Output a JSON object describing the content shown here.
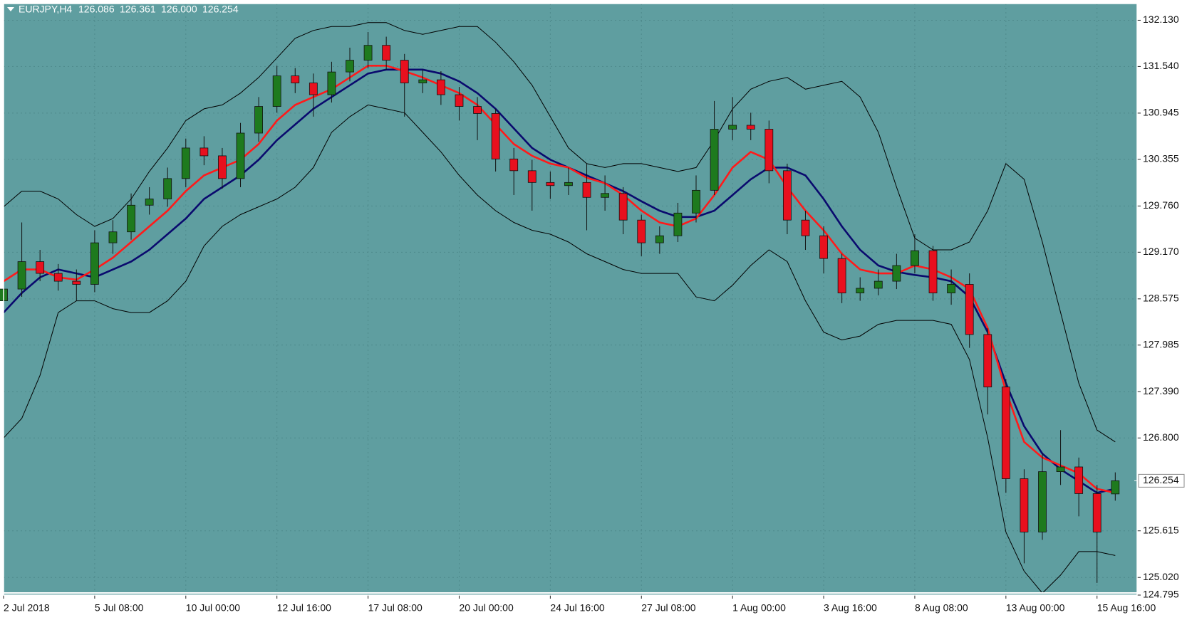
{
  "chart_data": {
    "type": "candlestick",
    "title": "EURJPY,H4",
    "ohlc_label": [
      "126.086",
      "126.361",
      "126.000",
      "126.254"
    ],
    "up_color": "#1e7a1e",
    "down_color": "#e8101e",
    "background": "#5f9ea0",
    "grid": true,
    "xlim": [
      0,
      62.2
    ],
    "ylim": [
      124.795,
      132.343
    ],
    "xticks": [
      {
        "value": 0,
        "label": "2 Jul 2018"
      },
      {
        "value": 5,
        "label": "5 Jul 08:00"
      },
      {
        "value": 10,
        "label": "10 Jul 00:00"
      },
      {
        "value": 15,
        "label": "12 Jul 16:00"
      },
      {
        "value": 20,
        "label": "17 Jul 08:00"
      },
      {
        "value": 25,
        "label": "20 Jul 00:00"
      },
      {
        "value": 30,
        "label": "24 Jul 16:00"
      },
      {
        "value": 35,
        "label": "27 Jul 08:00"
      },
      {
        "value": 40,
        "label": "1 Aug 00:00"
      },
      {
        "value": 45,
        "label": "3 Aug 16:00"
      },
      {
        "value": 50,
        "label": "8 Aug 08:00"
      },
      {
        "value": 55,
        "label": "13 Aug 00:00"
      },
      {
        "value": 60,
        "label": "15 Aug 16:00"
      }
    ],
    "yticks": [
      {
        "value": 132.13,
        "label": "132.130"
      },
      {
        "value": 131.54,
        "label": "131.540"
      },
      {
        "value": 130.945,
        "label": "130.945"
      },
      {
        "value": 130.355,
        "label": "130.355"
      },
      {
        "value": 129.76,
        "label": "129.760"
      },
      {
        "value": 129.17,
        "label": "129.170"
      },
      {
        "value": 128.575,
        "label": "128.575"
      },
      {
        "value": 127.985,
        "label": "127.985"
      },
      {
        "value": 127.39,
        "label": "127.390"
      },
      {
        "value": 126.8,
        "label": "126.800"
      },
      {
        "value": 125.615,
        "label": "125.615"
      },
      {
        "value": 125.02,
        "label": "125.020"
      },
      {
        "value": 124.795,
        "label": "124.795"
      }
    ],
    "current_price": {
      "value": 126.254,
      "label": "126.254"
    },
    "ohlc": {
      "open": [
        128.55,
        128.7,
        129.05,
        128.9,
        128.8,
        128.76,
        129.29,
        129.43,
        129.77,
        129.85,
        130.11,
        130.5,
        130.4,
        130.11,
        130.69,
        131.03,
        131.42,
        131.33,
        131.18,
        131.47,
        131.62,
        131.81,
        131.62,
        131.33,
        131.37,
        131.18,
        131.03,
        130.94,
        130.36,
        130.21,
        130.06,
        130.02,
        130.06,
        129.87,
        129.92,
        129.58,
        129.29,
        129.38,
        129.67,
        129.96,
        130.74,
        130.79,
        130.74,
        130.21,
        129.58,
        129.38,
        129.09,
        128.65,
        128.71,
        128.8,
        129.0,
        129.19,
        128.65,
        128.76,
        128.12,
        127.45,
        126.28,
        125.6,
        126.37,
        126.43,
        126.09,
        126.086
      ],
      "high": [
        128.95,
        129.55,
        129.2,
        129.02,
        128.95,
        129.45,
        129.58,
        129.92,
        130.0,
        130.25,
        130.62,
        130.65,
        130.5,
        130.82,
        131.15,
        131.55,
        131.52,
        131.45,
        131.6,
        131.78,
        131.98,
        131.92,
        131.7,
        131.5,
        131.48,
        131.28,
        131.15,
        131.0,
        130.5,
        130.35,
        130.2,
        130.25,
        130.3,
        130.15,
        130.0,
        129.65,
        129.5,
        129.8,
        130.15,
        131.1,
        131.15,
        130.95,
        130.85,
        130.3,
        129.7,
        129.5,
        129.15,
        128.85,
        128.95,
        129.15,
        129.4,
        129.25,
        128.95,
        128.9,
        128.2,
        127.55,
        126.4,
        126.6,
        126.9,
        126.55,
        126.2,
        126.361
      ],
      "low": [
        128.4,
        128.6,
        128.8,
        128.68,
        128.55,
        128.66,
        129.15,
        129.33,
        129.65,
        129.75,
        130.0,
        130.28,
        129.98,
        130.0,
        130.58,
        130.95,
        131.2,
        130.9,
        131.08,
        131.35,
        131.52,
        131.5,
        130.9,
        131.2,
        131.05,
        130.85,
        130.6,
        130.2,
        129.9,
        129.7,
        129.85,
        129.9,
        129.45,
        129.7,
        129.4,
        129.12,
        129.15,
        129.3,
        129.55,
        129.9,
        130.6,
        130.6,
        130.05,
        129.4,
        129.2,
        128.9,
        128.52,
        128.55,
        128.62,
        128.7,
        128.9,
        128.55,
        128.5,
        127.95,
        127.1,
        126.1,
        125.2,
        125.5,
        126.2,
        125.8,
        124.95,
        126.0
      ],
      "close": [
        128.7,
        129.05,
        128.9,
        128.8,
        128.76,
        129.29,
        129.43,
        129.77,
        129.85,
        130.11,
        130.5,
        130.4,
        130.11,
        130.69,
        131.03,
        131.42,
        131.33,
        131.18,
        131.47,
        131.62,
        131.81,
        131.62,
        131.33,
        131.37,
        131.18,
        131.03,
        130.94,
        130.36,
        130.21,
        130.06,
        130.02,
        130.06,
        129.87,
        129.92,
        129.58,
        129.29,
        129.38,
        129.67,
        129.96,
        130.74,
        130.79,
        130.74,
        130.21,
        129.58,
        129.38,
        129.09,
        128.65,
        128.71,
        128.8,
        129.0,
        129.19,
        128.65,
        128.76,
        128.12,
        127.45,
        126.28,
        125.6,
        126.37,
        126.43,
        126.09,
        125.6,
        126.254
      ]
    },
    "overlays": [
      {
        "color": "#000000",
        "values": [
          129.75,
          129.95,
          129.95,
          129.85,
          129.65,
          129.5,
          129.6,
          129.85,
          130.2,
          130.5,
          130.85,
          131.0,
          131.05,
          131.2,
          131.4,
          131.65,
          131.9,
          132.0,
          132.05,
          132.05,
          132.1,
          132.1,
          132.0,
          131.95,
          132.0,
          132.05,
          132.05,
          131.85,
          131.6,
          131.3,
          130.9,
          130.5,
          130.3,
          130.25,
          130.3,
          130.3,
          130.25,
          130.2,
          130.25,
          130.6,
          131.0,
          131.25,
          131.35,
          131.4,
          131.25,
          131.3,
          131.35,
          131.15,
          130.7,
          130.0,
          129.35,
          129.2,
          129.2,
          129.3,
          129.7,
          130.3,
          130.1,
          129.3,
          128.4,
          127.5,
          126.9,
          126.75
        ]
      },
      {
        "color": "#000000",
        "values": [
          126.8,
          127.05,
          127.6,
          128.4,
          128.55,
          128.55,
          128.45,
          128.4,
          128.4,
          128.55,
          128.8,
          129.25,
          129.5,
          129.65,
          129.75,
          129.85,
          130.0,
          130.25,
          130.7,
          130.9,
          131.05,
          131.0,
          130.95,
          130.7,
          130.45,
          130.15,
          129.9,
          129.7,
          129.55,
          129.45,
          129.4,
          129.3,
          129.15,
          129.05,
          128.95,
          128.9,
          128.9,
          128.9,
          128.6,
          128.55,
          128.75,
          129.0,
          129.2,
          129.05,
          128.55,
          128.15,
          128.05,
          128.1,
          128.25,
          128.3,
          128.3,
          128.3,
          128.25,
          127.8,
          126.8,
          125.6,
          125.1,
          124.82,
          125.05,
          125.35,
          125.35,
          125.3
        ]
      },
      {
        "color": "#0a0a6e",
        "values": [
          128.4,
          128.65,
          128.85,
          128.95,
          128.9,
          128.85,
          128.95,
          129.05,
          129.2,
          129.4,
          129.6,
          129.85,
          130.0,
          130.15,
          130.35,
          130.6,
          130.8,
          131.0,
          131.15,
          131.3,
          131.45,
          131.5,
          131.5,
          131.5,
          131.45,
          131.35,
          131.2,
          131.0,
          130.75,
          130.5,
          130.35,
          130.25,
          130.15,
          130.05,
          129.95,
          129.82,
          129.7,
          129.62,
          129.62,
          129.7,
          129.9,
          130.1,
          130.25,
          130.25,
          130.15,
          129.85,
          129.5,
          129.2,
          129.0,
          128.92,
          128.88,
          128.85,
          128.8,
          128.6,
          128.15,
          127.5,
          126.95,
          126.6,
          126.4,
          126.25,
          126.1,
          126.15
        ]
      },
      {
        "color": "#ff1a1a",
        "values": [
          128.8,
          128.95,
          128.95,
          128.85,
          128.82,
          128.95,
          129.1,
          129.3,
          129.5,
          129.7,
          129.95,
          130.15,
          130.25,
          130.35,
          130.55,
          130.85,
          131.05,
          131.15,
          131.25,
          131.4,
          131.55,
          131.55,
          131.48,
          131.4,
          131.3,
          131.2,
          131.05,
          130.8,
          130.55,
          130.4,
          130.3,
          130.25,
          130.12,
          130.05,
          129.9,
          129.7,
          129.55,
          129.5,
          129.6,
          129.9,
          130.25,
          130.45,
          130.35,
          130.0,
          129.7,
          129.45,
          129.15,
          128.95,
          128.9,
          128.9,
          129.0,
          128.95,
          128.85,
          128.7,
          128.2,
          127.4,
          126.75,
          126.55,
          126.45,
          126.35,
          126.15,
          126.1
        ]
      }
    ]
  }
}
